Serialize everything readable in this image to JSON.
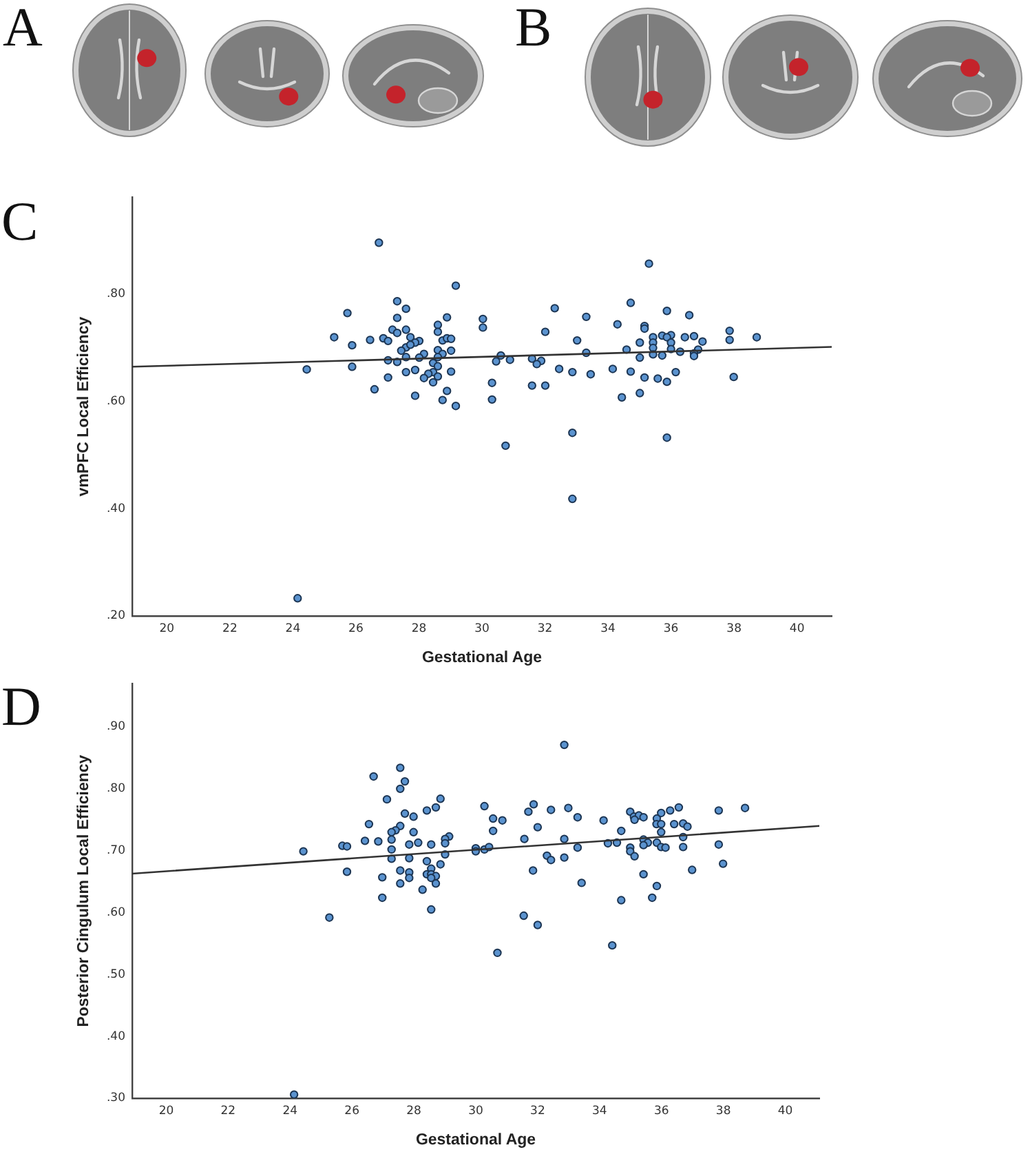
{
  "chart_data": [
    {
      "type": "other",
      "annotations": [
        "A",
        "B"
      ]
    },
    {
      "type": "scatter",
      "title": "C",
      "xlabel": "Gestational Age",
      "ylabel": "vmPFC Local Efficiency",
      "marker": "circle",
      "xlim": [
        18.9,
        41.1
      ],
      "ylim": [
        0.2,
        0.98
      ],
      "xticks": [
        20,
        22,
        24,
        26,
        28,
        30,
        32,
        34,
        36,
        38,
        40
      ],
      "yticks": [
        {
          "value": 0.2,
          "label": ".20"
        },
        {
          "value": 0.4,
          "label": ".40"
        },
        {
          "value": 0.6,
          "label": ".60"
        },
        {
          "value": 0.8,
          "label": ".80"
        }
      ],
      "series": [
        {
          "type": "scatter",
          "color": "#5b93cf",
          "x": [
            26.73,
            29.17,
            27.31,
            27.59,
            25.73,
            27.31,
            28.89,
            30.03,
            28.6,
            30.03,
            27.16,
            27.59,
            27.31,
            28.6,
            25.31,
            26.87,
            27.02,
            26.45,
            27.73,
            28.01,
            27.88,
            28.75,
            28.89,
            29.02,
            25.88,
            27.59,
            27.73,
            27.44,
            28.6,
            29.02,
            28.75,
            28.16,
            27.59,
            28.01,
            28.6,
            27.02,
            27.31,
            28.45,
            30.6,
            30.45,
            30.89,
            24.44,
            25.88,
            27.88,
            27.59,
            28.6,
            29.02,
            28.45,
            28.3,
            28.6,
            27.02,
            28.16,
            28.45,
            30.32,
            26.59,
            28.89,
            27.88,
            28.75,
            30.32,
            29.17,
            30.75,
            24.15,
            35.3,
            34.72,
            32.31,
            35.87,
            33.31,
            36.58,
            34.3,
            35.16,
            35.16,
            32.01,
            37.86,
            33.02,
            35.43,
            35.72,
            36.0,
            35.87,
            36.44,
            36.73,
            37.0,
            37.86,
            38.72,
            35.01,
            35.43,
            36.0,
            34.59,
            35.43,
            36.0,
            36.29,
            36.86,
            36.73,
            33.31,
            35.43,
            35.72,
            36.73,
            31.59,
            31.88,
            31.74,
            35.01,
            32.45,
            32.87,
            33.45,
            34.15,
            34.72,
            36.15,
            35.16,
            35.58,
            35.87,
            37.99,
            31.59,
            32.01,
            35.01,
            34.44,
            32.87,
            35.87,
            32.87
          ],
          "values": [
            0.895,
            0.815,
            0.786,
            0.772,
            0.764,
            0.755,
            0.756,
            0.753,
            0.742,
            0.737,
            0.733,
            0.733,
            0.727,
            0.729,
            0.719,
            0.717,
            0.712,
            0.714,
            0.719,
            0.712,
            0.709,
            0.713,
            0.717,
            0.716,
            0.704,
            0.7,
            0.705,
            0.694,
            0.695,
            0.694,
            0.688,
            0.688,
            0.682,
            0.681,
            0.682,
            0.676,
            0.673,
            0.671,
            0.685,
            0.674,
            0.677,
            0.659,
            0.664,
            0.658,
            0.654,
            0.665,
            0.655,
            0.654,
            0.651,
            0.646,
            0.644,
            0.643,
            0.635,
            0.634,
            0.622,
            0.619,
            0.61,
            0.602,
            0.603,
            0.591,
            0.517,
            0.233,
            0.856,
            0.783,
            0.773,
            0.768,
            0.757,
            0.76,
            0.743,
            0.74,
            0.735,
            0.729,
            0.731,
            0.713,
            0.719,
            0.722,
            0.723,
            0.719,
            0.719,
            0.721,
            0.711,
            0.714,
            0.719,
            0.709,
            0.709,
            0.709,
            0.696,
            0.699,
            0.697,
            0.692,
            0.696,
            0.689,
            0.69,
            0.687,
            0.685,
            0.684,
            0.679,
            0.675,
            0.669,
            0.681,
            0.66,
            0.654,
            0.65,
            0.66,
            0.655,
            0.654,
            0.644,
            0.642,
            0.636,
            0.645,
            0.629,
            0.629,
            0.615,
            0.607,
            0.541,
            0.532,
            0.418
          ]
        },
        {
          "type": "line",
          "color": "#333333",
          "marker": "none",
          "x": [
            18.9,
            41.1
          ],
          "values": [
            0.664,
            0.701
          ]
        }
      ]
    },
    {
      "type": "scatter",
      "title": "D",
      "xlabel": "Gestational Age",
      "ylabel": "Posterior Cingulum Local Efficiency",
      "marker": "circle",
      "xlim": [
        18.9,
        41.1
      ],
      "ylim": [
        0.3,
        0.97
      ],
      "xticks": [
        20,
        22,
        24,
        26,
        28,
        30,
        32,
        34,
        36,
        38,
        40
      ],
      "yticks": [
        {
          "value": 0.3,
          "label": ".30"
        },
        {
          "value": 0.4,
          "label": ".40"
        },
        {
          "value": 0.5,
          "label": ".50"
        },
        {
          "value": 0.6,
          "label": ".60"
        },
        {
          "value": 0.7,
          "label": ".70"
        },
        {
          "value": 0.8,
          "label": ".80"
        },
        {
          "value": 0.9,
          "label": ".90"
        }
      ],
      "series": [
        {
          "type": "scatter",
          "color": "#5b93cf",
          "x": [
            27.56,
            26.7,
            27.71,
            27.56,
            28.86,
            27.13,
            30.28,
            28.71,
            28.42,
            27.71,
            27.99,
            30.56,
            30.86,
            26.55,
            27.56,
            27.41,
            27.28,
            30.56,
            27.99,
            29.14,
            29.01,
            27.28,
            26.42,
            26.85,
            29.01,
            28.14,
            27.85,
            28.56,
            25.69,
            25.84,
            24.43,
            27.28,
            30.0,
            30.0,
            30.28,
            30.43,
            29.01,
            27.28,
            27.85,
            28.42,
            28.86,
            28.56,
            27.56,
            25.84,
            27.85,
            28.42,
            28.56,
            28.71,
            26.98,
            27.85,
            28.56,
            28.71,
            27.56,
            28.28,
            26.98,
            28.56,
            25.27,
            31.55,
            30.7,
            24.13,
            31.57,
            32.86,
            31.87,
            31.7,
            32.43,
            32.99,
            33.29,
            34.13,
            34.99,
            35.11,
            35.27,
            35.42,
            35.13,
            35.99,
            36.28,
            36.56,
            37.85,
            38.7,
            35.85,
            35.84,
            35.99,
            36.41,
            36.7,
            36.84,
            32.0,
            34.7,
            35.99,
            32.86,
            36.7,
            35.42,
            35.56,
            35.85,
            34.27,
            34.56,
            35.42,
            35.99,
            36.13,
            36.7,
            37.85,
            33.29,
            34.99,
            34.99,
            35.13,
            32.3,
            32.43,
            32.86,
            37.99,
            31.85,
            36.99,
            35.42,
            33.42,
            35.85,
            34.7,
            35.7,
            32.0,
            34.41
          ],
          "values": [
            0.834,
            0.82,
            0.812,
            0.8,
            0.784,
            0.783,
            0.772,
            0.77,
            0.765,
            0.76,
            0.755,
            0.752,
            0.749,
            0.743,
            0.74,
            0.733,
            0.73,
            0.732,
            0.73,
            0.723,
            0.719,
            0.718,
            0.716,
            0.715,
            0.712,
            0.713,
            0.71,
            0.71,
            0.708,
            0.707,
            0.699,
            0.702,
            0.704,
            0.699,
            0.702,
            0.706,
            0.694,
            0.687,
            0.688,
            0.683,
            0.678,
            0.671,
            0.668,
            0.666,
            0.665,
            0.662,
            0.662,
            0.659,
            0.657,
            0.656,
            0.656,
            0.647,
            0.647,
            0.637,
            0.624,
            0.605,
            0.592,
            0.595,
            0.535,
            0.306,
            0.719,
            0.871,
            0.775,
            0.763,
            0.766,
            0.769,
            0.754,
            0.749,
            0.763,
            0.755,
            0.757,
            0.754,
            0.75,
            0.761,
            0.765,
            0.77,
            0.765,
            0.769,
            0.752,
            0.743,
            0.743,
            0.743,
            0.744,
            0.739,
            0.738,
            0.732,
            0.73,
            0.719,
            0.722,
            0.718,
            0.713,
            0.713,
            0.712,
            0.713,
            0.709,
            0.706,
            0.705,
            0.706,
            0.71,
            0.705,
            0.705,
            0.699,
            0.691,
            0.692,
            0.685,
            0.689,
            0.679,
            0.668,
            0.669,
            0.662,
            0.648,
            0.643,
            0.62,
            0.624,
            0.58,
            0.547
          ]
        },
        {
          "type": "line",
          "color": "#333333",
          "marker": "none",
          "x": [
            18.9,
            41.1
          ],
          "values": [
            0.663,
            0.74
          ]
        }
      ]
    }
  ]
}
